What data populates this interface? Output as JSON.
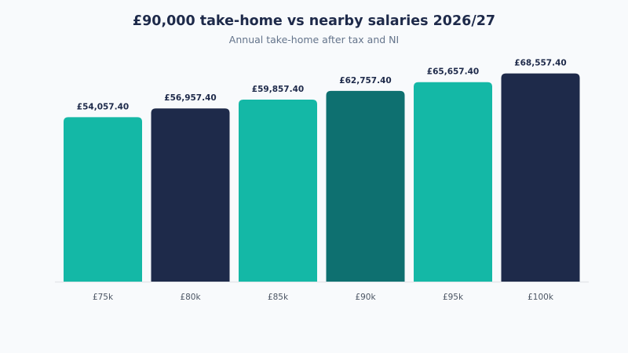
{
  "chart_data": {
    "type": "bar",
    "title": "£90,000 take-home vs nearby salaries 2026/27",
    "subtitle": "Annual take-home after tax and NI",
    "categories": [
      "£75k",
      "£80k",
      "£85k",
      "£90k",
      "£95k",
      "£100k"
    ],
    "values": [
      54057.4,
      56957.4,
      59857.4,
      62757.4,
      65657.4,
      68557.4
    ],
    "value_labels": [
      "£54,057.40",
      "£56,957.40",
      "£59,857.40",
      "£62,757.40",
      "£65,657.40",
      "£68,557.40"
    ],
    "bar_colors": [
      "#14b8a6",
      "#1e2a4a",
      "#14b8a6",
      "#0e7070",
      "#14b8a6",
      "#1e2a4a"
    ],
    "ylim": [
      0,
      70000
    ],
    "grid": false,
    "legend": "none"
  },
  "colors": {
    "background": "#f8fafc",
    "text_dark": "#1e2a4a",
    "text_muted": "#64748b",
    "baseline": "#e5e7eb"
  }
}
